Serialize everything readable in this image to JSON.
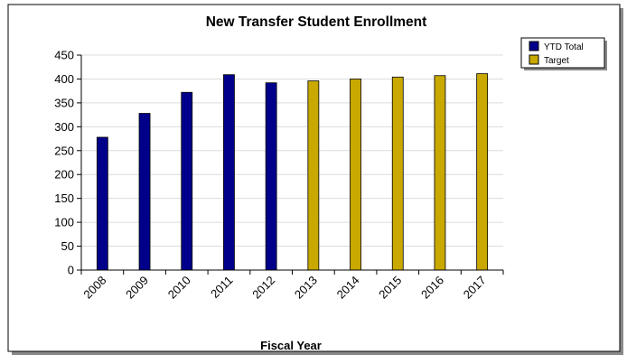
{
  "chart_data": {
    "type": "bar",
    "title": "New Transfer Student Enrollment",
    "xlabel": "Fiscal Year",
    "ylabel": "",
    "ylim": [
      0,
      450
    ],
    "yticks": [
      0,
      50,
      100,
      150,
      200,
      250,
      300,
      350,
      400,
      450
    ],
    "grid": true,
    "legend_position": "top-right",
    "categories": [
      "2008",
      "2009",
      "2010",
      "2011",
      "2012",
      "2013",
      "2014",
      "2015",
      "2016",
      "2017"
    ],
    "series": [
      {
        "name": "YTD Total",
        "color": "#00008b",
        "values": [
          278,
          328,
          372,
          409,
          392,
          null,
          null,
          null,
          null,
          null
        ]
      },
      {
        "name": "Target",
        "color": "#c9a800",
        "values": [
          null,
          null,
          null,
          null,
          null,
          396,
          400,
          404,
          407,
          411
        ]
      }
    ]
  }
}
